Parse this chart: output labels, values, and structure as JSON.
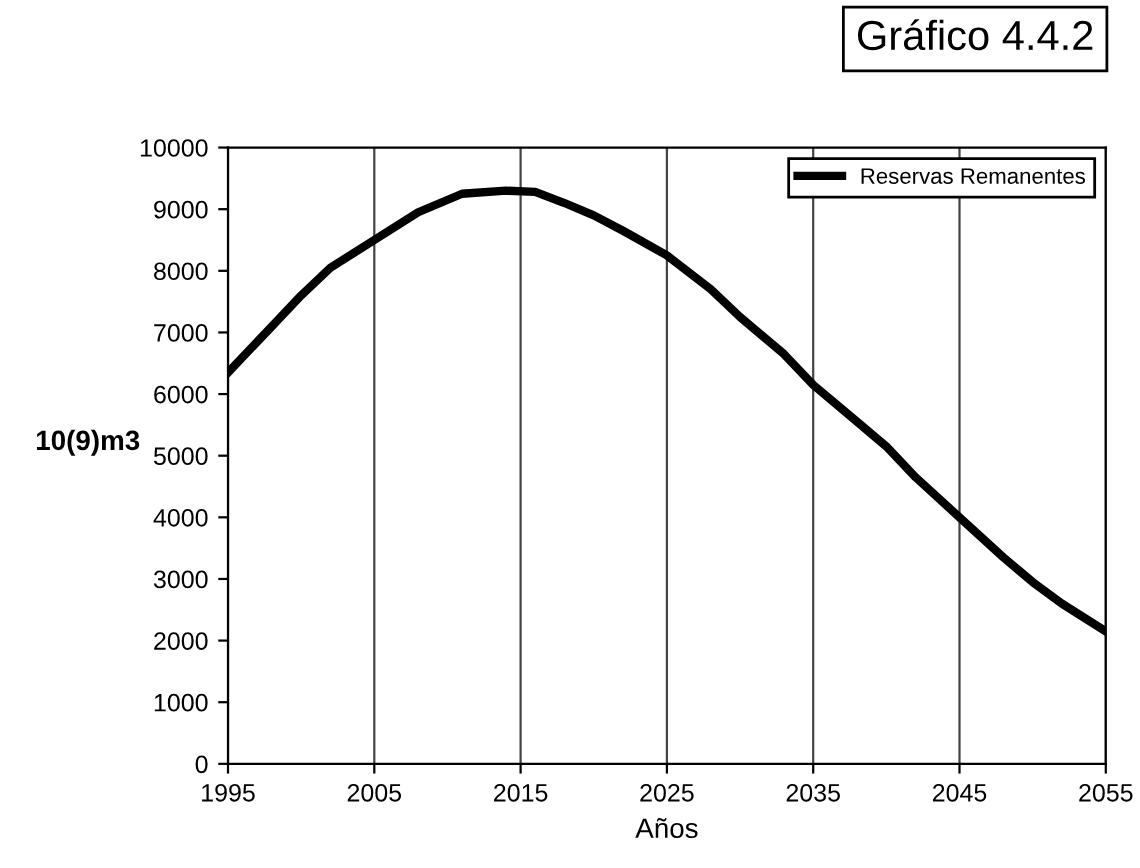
{
  "chart_data": {
    "type": "line",
    "title": "Gráfico 4.4.2",
    "xlabel": "Años",
    "ylabel": "10(9)m3",
    "x": [
      1995,
      1998,
      2000,
      2002,
      2005,
      2008,
      2011,
      2014,
      2016,
      2018,
      2020,
      2022,
      2025,
      2028,
      2030,
      2033,
      2035,
      2038,
      2040,
      2042,
      2045,
      2048,
      2050,
      2052,
      2055
    ],
    "series": [
      {
        "name": "Reservas Remanentes",
        "color": "#000000",
        "values": [
          6350,
          7100,
          7600,
          8050,
          8500,
          8950,
          9250,
          9300,
          9280,
          9100,
          8900,
          8650,
          8250,
          7700,
          7250,
          6650,
          6150,
          5550,
          5150,
          4650,
          4000,
          3350,
          2950,
          2600,
          2150
        ]
      }
    ],
    "xlim": [
      1995,
      2055
    ],
    "xticks": [
      1995,
      2005,
      2015,
      2025,
      2035,
      2045,
      2055
    ],
    "ylim": [
      0,
      10000
    ],
    "yticks": [
      0,
      1000,
      2000,
      3000,
      4000,
      5000,
      6000,
      7000,
      8000,
      9000,
      10000
    ],
    "grid": "x",
    "legend": "top right",
    "line_style": "solid",
    "marker": "none"
  }
}
